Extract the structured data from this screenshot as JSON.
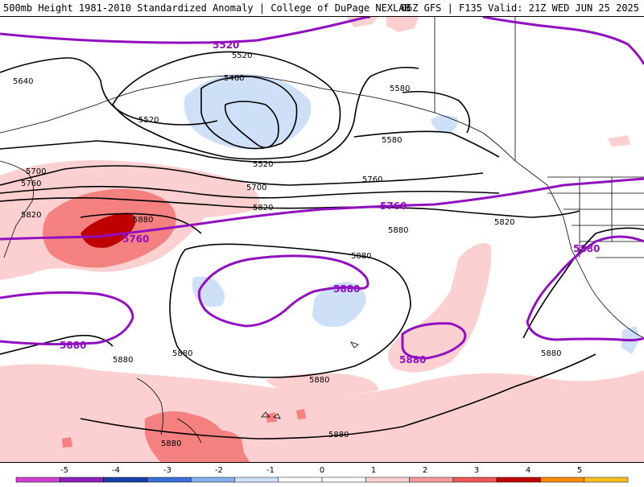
{
  "header": {
    "title_left": "500mb Height 1981-2010 Standardized Anomaly | College of DuPage NEXLAB",
    "title_right": "06Z GFS | F135 Valid: 21Z WED JUN 25 2025"
  },
  "map": {
    "contour_labels": [
      {
        "id": "c5640",
        "text": "5640"
      },
      {
        "id": "c5520a",
        "text": "5520"
      },
      {
        "id": "c5460",
        "text": "5460"
      },
      {
        "id": "c5520b",
        "text": "5520"
      },
      {
        "id": "c5520c",
        "text": "5520"
      },
      {
        "id": "c5580a",
        "text": "5580"
      },
      {
        "id": "c5580b",
        "text": "5580"
      },
      {
        "id": "c5700a",
        "text": "5700"
      },
      {
        "id": "c5700b",
        "text": "5700"
      },
      {
        "id": "c5760a",
        "text": "5760"
      },
      {
        "id": "c5760b",
        "text": "5760"
      },
      {
        "id": "c5820a",
        "text": "5820"
      },
      {
        "id": "c5820b",
        "text": "5820"
      },
      {
        "id": "c5820c",
        "text": "5820"
      },
      {
        "id": "c5880a",
        "text": "5880"
      },
      {
        "id": "c5880b",
        "text": "5880"
      },
      {
        "id": "c5880c",
        "text": "5880"
      },
      {
        "id": "c5880d",
        "text": "5880"
      },
      {
        "id": "c5880e",
        "text": "5880"
      },
      {
        "id": "c5880f",
        "text": "5880"
      },
      {
        "id": "c5880g",
        "text": "5880"
      },
      {
        "id": "c5880h",
        "text": "5880"
      },
      {
        "id": "c5880i",
        "text": "5880"
      }
    ],
    "purple_labels": [
      {
        "id": "p5520",
        "text": "5520"
      },
      {
        "id": "p5760a",
        "text": "5760"
      },
      {
        "id": "p5760b",
        "text": "5760"
      },
      {
        "id": "p5880a",
        "text": "5880"
      },
      {
        "id": "p5880b",
        "text": "5880"
      },
      {
        "id": "p5880c",
        "text": "5880"
      },
      {
        "id": "p5880d",
        "text": "5880"
      }
    ]
  },
  "colorbar": {
    "ticks": [
      "-5",
      "-4",
      "-3",
      "-2",
      "-1",
      "0",
      "1",
      "2",
      "3",
      "4",
      "5"
    ],
    "colors": [
      "#d040d0",
      "#8a20b8",
      "#1a3ea8",
      "#3a70d8",
      "#88b0ec",
      "#cde0f8",
      "#ffffff",
      "#ffffff",
      "#fcd0d0",
      "#f89a9a",
      "#ee5858",
      "#c00000",
      "#ff8c00",
      "#ffc020"
    ],
    "anomaly_colors": {
      "positive_1": "#fcd0d0",
      "positive_2": "#f48080",
      "positive_3": "#c00000",
      "negative_1": "#cde0f8"
    },
    "contour_color": "#000000",
    "highlight_contour_color": "#9010c0"
  }
}
